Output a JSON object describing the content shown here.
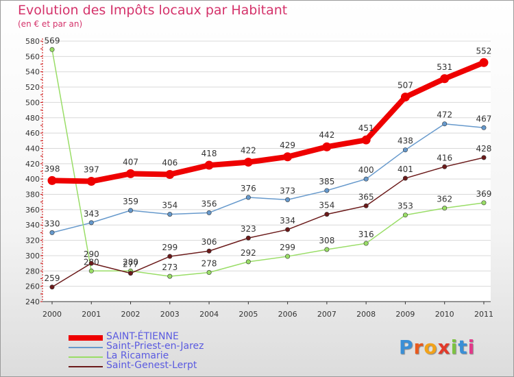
{
  "header": {
    "title": "Evolution des Impôts locaux par Habitant",
    "subtitle": "(en € et par an)"
  },
  "logo": {
    "text": "Proxiti"
  },
  "colors": {
    "saint_etienne": "#ee0000",
    "saint_priest": "#6699cc",
    "ricamarie": "#99dd66",
    "saint_genest": "#6b1a1a",
    "title": "#d4326a",
    "legend_text": "#5a5ae0"
  },
  "chart_data": {
    "type": "line",
    "title": "Evolution des Impôts locaux par Habitant",
    "subtitle": "(en € et par an)",
    "xlabel": "",
    "ylabel": "",
    "ylim": [
      240,
      580
    ],
    "yticks": [
      240,
      260,
      280,
      300,
      320,
      340,
      360,
      380,
      400,
      420,
      440,
      460,
      480,
      500,
      520,
      540,
      560,
      580
    ],
    "categories": [
      "2000",
      "2001",
      "2002",
      "2003",
      "2004",
      "2005",
      "2006",
      "2007",
      "2008",
      "2009",
      "2010",
      "2011"
    ],
    "legend_position": "bottom-left",
    "series": [
      {
        "name": "SAINT-ÉTIENNE",
        "color": "#ee0000",
        "values": [
          398,
          397,
          407,
          406,
          418,
          422,
          429,
          442,
          451,
          507,
          531,
          552
        ]
      },
      {
        "name": "Saint-Priest-en-Jarez",
        "color": "#6699cc",
        "values": [
          330,
          343,
          359,
          354,
          356,
          376,
          373,
          385,
          400,
          438,
          472,
          467
        ]
      },
      {
        "name": "La Ricamarie",
        "color": "#99dd66",
        "values": [
          569,
          280,
          280,
          273,
          278,
          292,
          299,
          308,
          316,
          353,
          362,
          369
        ]
      },
      {
        "name": "Saint-Genest-Lerpt",
        "color": "#6b1a1a",
        "values": [
          259,
          290,
          277,
          299,
          306,
          323,
          334,
          354,
          365,
          401,
          416,
          428
        ]
      }
    ]
  }
}
